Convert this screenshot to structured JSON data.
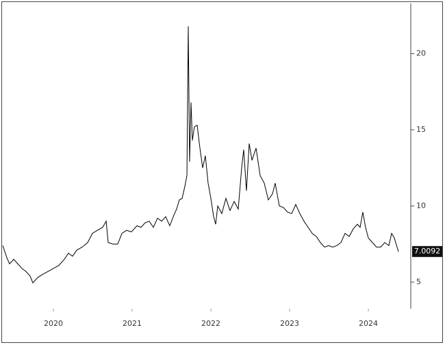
{
  "chart_data": {
    "type": "line",
    "x": [
      2019.357,
      2019.409,
      2019.443,
      2019.496,
      2019.548,
      2019.6,
      2019.652,
      2019.704,
      2019.739,
      2019.8,
      2019.861,
      2019.93,
      2020.0,
      2020.07,
      2020.139,
      2020.191,
      2020.243,
      2020.296,
      2020.365,
      2020.435,
      2020.496,
      2020.557,
      2020.626,
      2020.67,
      2020.696,
      2020.757,
      2020.817,
      2020.87,
      2020.93,
      2020.991,
      2021.061,
      2021.113,
      2021.165,
      2021.217,
      2021.27,
      2021.322,
      2021.374,
      2021.426,
      2021.478,
      2021.53,
      2021.565,
      2021.6,
      2021.635,
      2021.67,
      2021.696,
      2021.713,
      2021.73,
      2021.748,
      2021.765,
      2021.791,
      2021.826,
      2021.861,
      2021.896,
      2021.93,
      2021.965,
      2022.0,
      2022.035,
      2022.061,
      2022.087,
      2022.139,
      2022.191,
      2022.243,
      2022.296,
      2022.348,
      2022.391,
      2022.417,
      2022.452,
      2022.487,
      2022.522,
      2022.574,
      2022.626,
      2022.678,
      2022.73,
      2022.783,
      2022.817,
      2022.87,
      2022.922,
      2022.974,
      2023.026,
      2023.078,
      2023.13,
      2023.183,
      2023.235,
      2023.287,
      2023.339,
      2023.391,
      2023.443,
      2023.496,
      2023.548,
      2023.6,
      2023.652,
      2023.704,
      2023.757,
      2023.809,
      2023.861,
      2023.896,
      2023.93,
      2023.965,
      2024.0,
      2024.052,
      2024.104,
      2024.157,
      2024.209,
      2024.261,
      2024.296,
      2024.33,
      2024.365,
      2024.383
    ],
    "values": [
      7.4,
      6.6,
      6.2,
      6.5,
      6.2,
      5.9,
      5.7,
      5.4,
      4.95,
      5.3,
      5.5,
      5.7,
      5.9,
      6.1,
      6.5,
      6.9,
      6.7,
      7.1,
      7.3,
      7.6,
      8.2,
      8.4,
      8.6,
      9.0,
      7.6,
      7.5,
      7.5,
      8.2,
      8.4,
      8.3,
      8.7,
      8.6,
      8.9,
      9.0,
      8.6,
      9.2,
      9.0,
      9.3,
      8.7,
      9.4,
      9.8,
      10.4,
      10.5,
      11.3,
      12.0,
      21.8,
      12.9,
      16.8,
      14.3,
      15.2,
      15.3,
      13.8,
      12.5,
      13.3,
      11.5,
      10.5,
      9.3,
      8.8,
      10.0,
      9.5,
      10.5,
      9.7,
      10.3,
      9.8,
      12.5,
      13.7,
      11.0,
      14.1,
      13.0,
      13.8,
      12.0,
      11.5,
      10.4,
      10.8,
      11.5,
      10.0,
      9.9,
      9.6,
      9.5,
      10.1,
      9.5,
      9.0,
      8.6,
      8.2,
      8.0,
      7.6,
      7.3,
      7.4,
      7.3,
      7.4,
      7.6,
      8.2,
      8.0,
      8.5,
      8.8,
      8.6,
      9.6,
      8.6,
      7.9,
      7.6,
      7.3,
      7.3,
      7.6,
      7.4,
      8.2,
      7.9,
      7.3,
      7.0092
    ],
    "color": "#000000",
    "xlim": [
      2019.35,
      2024.52
    ],
    "xticks": [
      2020,
      2021,
      2022,
      2023,
      2024
    ],
    "ylim": [
      3.25,
      23.3
    ],
    "yticks": [
      5,
      10,
      15,
      20
    ]
  }
}
